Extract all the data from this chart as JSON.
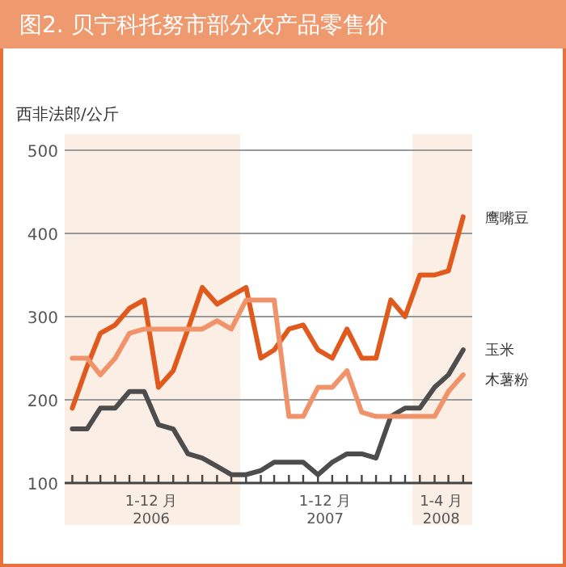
{
  "chart_data": {
    "type": "line",
    "title": "图2. 贝宁科托努市部分农产品零售价",
    "ylabel": "西非法郎/公斤",
    "x": [
      "2006-01",
      "2006-02",
      "2006-03",
      "2006-04",
      "2006-05",
      "2006-06",
      "2006-07",
      "2006-08",
      "2006-09",
      "2006-10",
      "2006-11",
      "2006-12",
      "2007-01",
      "2007-02",
      "2007-03",
      "2007-04",
      "2007-05",
      "2007-06",
      "2007-07",
      "2007-08",
      "2007-09",
      "2007-10",
      "2007-11",
      "2007-12",
      "2008-01",
      "2008-02",
      "2008-03",
      "2008-04"
    ],
    "series": [
      {
        "name": "鹰嘴豆",
        "color": "#e05a1e",
        "values": [
          190,
          240,
          280,
          290,
          310,
          320,
          215,
          235,
          285,
          335,
          315,
          325,
          335,
          250,
          260,
          285,
          290,
          260,
          250,
          285,
          250,
          250,
          320,
          300,
          350,
          350,
          355,
          420
        ]
      },
      {
        "name": "玉米",
        "color": "#4d4d4d",
        "values": [
          165,
          165,
          190,
          190,
          210,
          210,
          170,
          165,
          135,
          130,
          120,
          110,
          110,
          115,
          125,
          125,
          125,
          110,
          125,
          135,
          135,
          130,
          180,
          190,
          190,
          215,
          230,
          260
        ]
      },
      {
        "name": "木薯粉",
        "color": "#f0936a",
        "values": [
          250,
          250,
          230,
          250,
          280,
          285,
          285,
          285,
          285,
          285,
          295,
          285,
          320,
          320,
          320,
          180,
          180,
          215,
          215,
          235,
          185,
          180,
          180,
          180,
          180,
          180,
          210,
          230
        ]
      }
    ],
    "xlim": [
      "2005-12-16",
      "2008-04-20"
    ],
    "xticks": [
      {
        "value": "2006-01",
        "label": null
      },
      {
        "value": "2006-02",
        "label": null
      },
      {
        "value": "2006-03",
        "label": null
      },
      {
        "value": "2006-04",
        "label": null
      },
      {
        "value": "2006-05",
        "label": null
      },
      {
        "value": "2006-06",
        "label": null
      },
      {
        "value": "2006-07",
        "label": null
      },
      {
        "value": "2006-08",
        "label": null
      },
      {
        "value": "2006-09",
        "label": null
      },
      {
        "value": "2006-10",
        "label": null
      },
      {
        "value": "2006-11",
        "label": null
      },
      {
        "value": "2006-12",
        "label": null
      },
      {
        "value": "2007-01",
        "label": null
      },
      {
        "value": "2007-02",
        "label": null
      },
      {
        "value": "2007-03",
        "label": null
      },
      {
        "value": "2007-04",
        "label": null
      },
      {
        "value": "2007-05",
        "label": null
      },
      {
        "value": "2007-06",
        "label": null
      },
      {
        "value": "2007-07",
        "label": null
      },
      {
        "value": "2007-08",
        "label": null
      },
      {
        "value": "2007-09",
        "label": null
      },
      {
        "value": "2007-10",
        "label": null
      },
      {
        "value": "2007-11",
        "label": null
      },
      {
        "value": "2007-12",
        "label": null
      },
      {
        "value": "2008-01",
        "label": null
      },
      {
        "value": "2008-02",
        "label": null
      },
      {
        "value": "2008-03",
        "label": null
      },
      {
        "value": "2008-04",
        "label": null
      },
      {
        "value": "2006-06-16",
        "label": "1-12 月 2006"
      },
      {
        "value": "2007-06-16",
        "label": "1-12 月 2007"
      },
      {
        "value": "2008-02-15",
        "label": "1-4 月 2008"
      }
    ],
    "ylim": [
      100,
      500
    ],
    "yticks": [
      100,
      200,
      300,
      400,
      500
    ],
    "grid": "y",
    "legend": false,
    "marker": "none",
    "line_style": "solid",
    "bands": [
      {
        "axis": "x",
        "from": "2005-12-16",
        "to": "2006-12-20",
        "color": "#fbeee4"
      },
      {
        "axis": "x",
        "from": "2007-12-16",
        "to": "2008-04-20",
        "color": "#fbeee4"
      }
    ]
  }
}
